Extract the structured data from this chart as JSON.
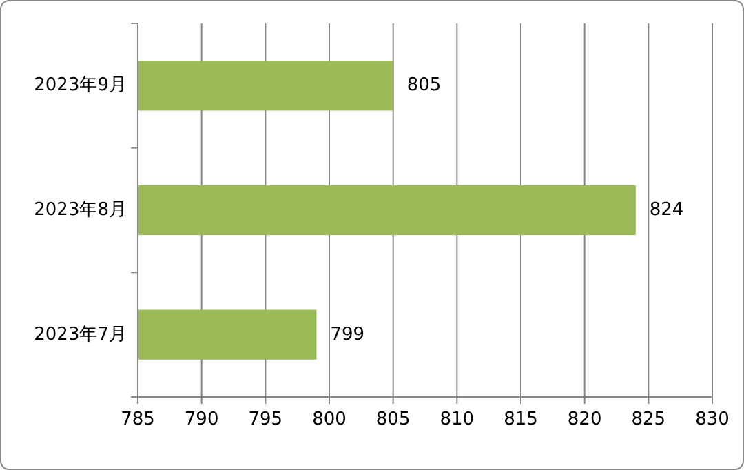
{
  "chart_data": {
    "type": "bar",
    "orientation": "horizontal",
    "categories": [
      "2023年9月",
      "2023年8月",
      "2023年7月"
    ],
    "values": [
      805,
      824,
      799
    ],
    "color": "#9bbb59",
    "xlim": [
      785,
      830
    ],
    "xticks": [
      785,
      790,
      795,
      800,
      805,
      810,
      815,
      820,
      825,
      830
    ],
    "grid": "x",
    "data_labels": true
  }
}
